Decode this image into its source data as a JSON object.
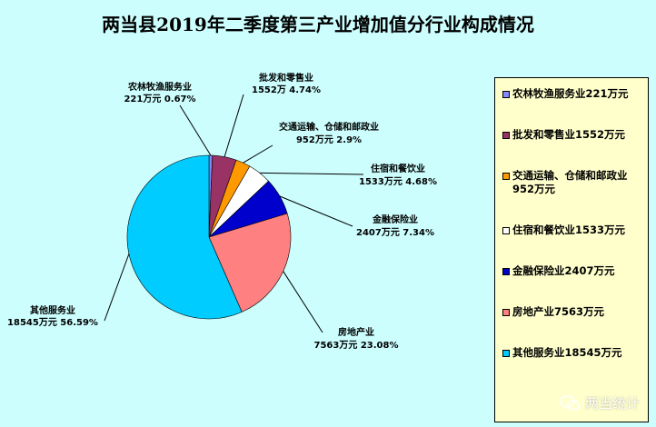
{
  "chart_data": {
    "type": "pie",
    "title": "两当县2019年二季度第三产业增加值分行业构成情况",
    "slices": [
      {
        "name": "农林牧渔服务业",
        "value": 221,
        "percent": 0.67,
        "color": "#8888ff",
        "label1": "农林牧渔服务业",
        "label2": "221万元   0.67%",
        "legend": "农林牧渔服务业221万元"
      },
      {
        "name": "批发和零售业",
        "value": 1552,
        "percent": 4.74,
        "color": "#993366",
        "label1": "批发和零售业",
        "label2": "1552万   4.74%",
        "legend": "批发和零售业1552万元"
      },
      {
        "name": "交通运输、仓储和邮政业",
        "value": 952,
        "percent": 2.9,
        "color": "#ff9900",
        "label1": "交通运输、仓储和邮政业",
        "label2": "952万元 2.9%",
        "legend": "交通运输、仓储和邮政业952万元"
      },
      {
        "name": "住宿和餐饮业",
        "value": 1533,
        "percent": 4.68,
        "color": "#ffffff",
        "label1": "住宿和餐饮业",
        "label2": "1533万元   4.68%",
        "legend": "住宿和餐饮业1533万元"
      },
      {
        "name": "金融保险业",
        "value": 2407,
        "percent": 7.34,
        "color": "#0000cc",
        "label1": "金融保险业",
        "label2": "2407万元   7.34%",
        "legend": "金融保险业2407万元"
      },
      {
        "name": "房地产业",
        "value": 7563,
        "percent": 23.08,
        "color": "#ff8080",
        "label1": "房地产业",
        "label2": "7563万元  23.08%",
        "legend": "房地产业7563万元"
      },
      {
        "name": "其他服务业",
        "value": 18545,
        "percent": 56.59,
        "color": "#00ccff",
        "label1": "其他服务业",
        "label2": "18545万元   56.59%",
        "legend": "其他服务业18545万元"
      }
    ],
    "legend_position": "right"
  },
  "watermark": {
    "text": "两当统计",
    "icon": "wechat-icon"
  }
}
